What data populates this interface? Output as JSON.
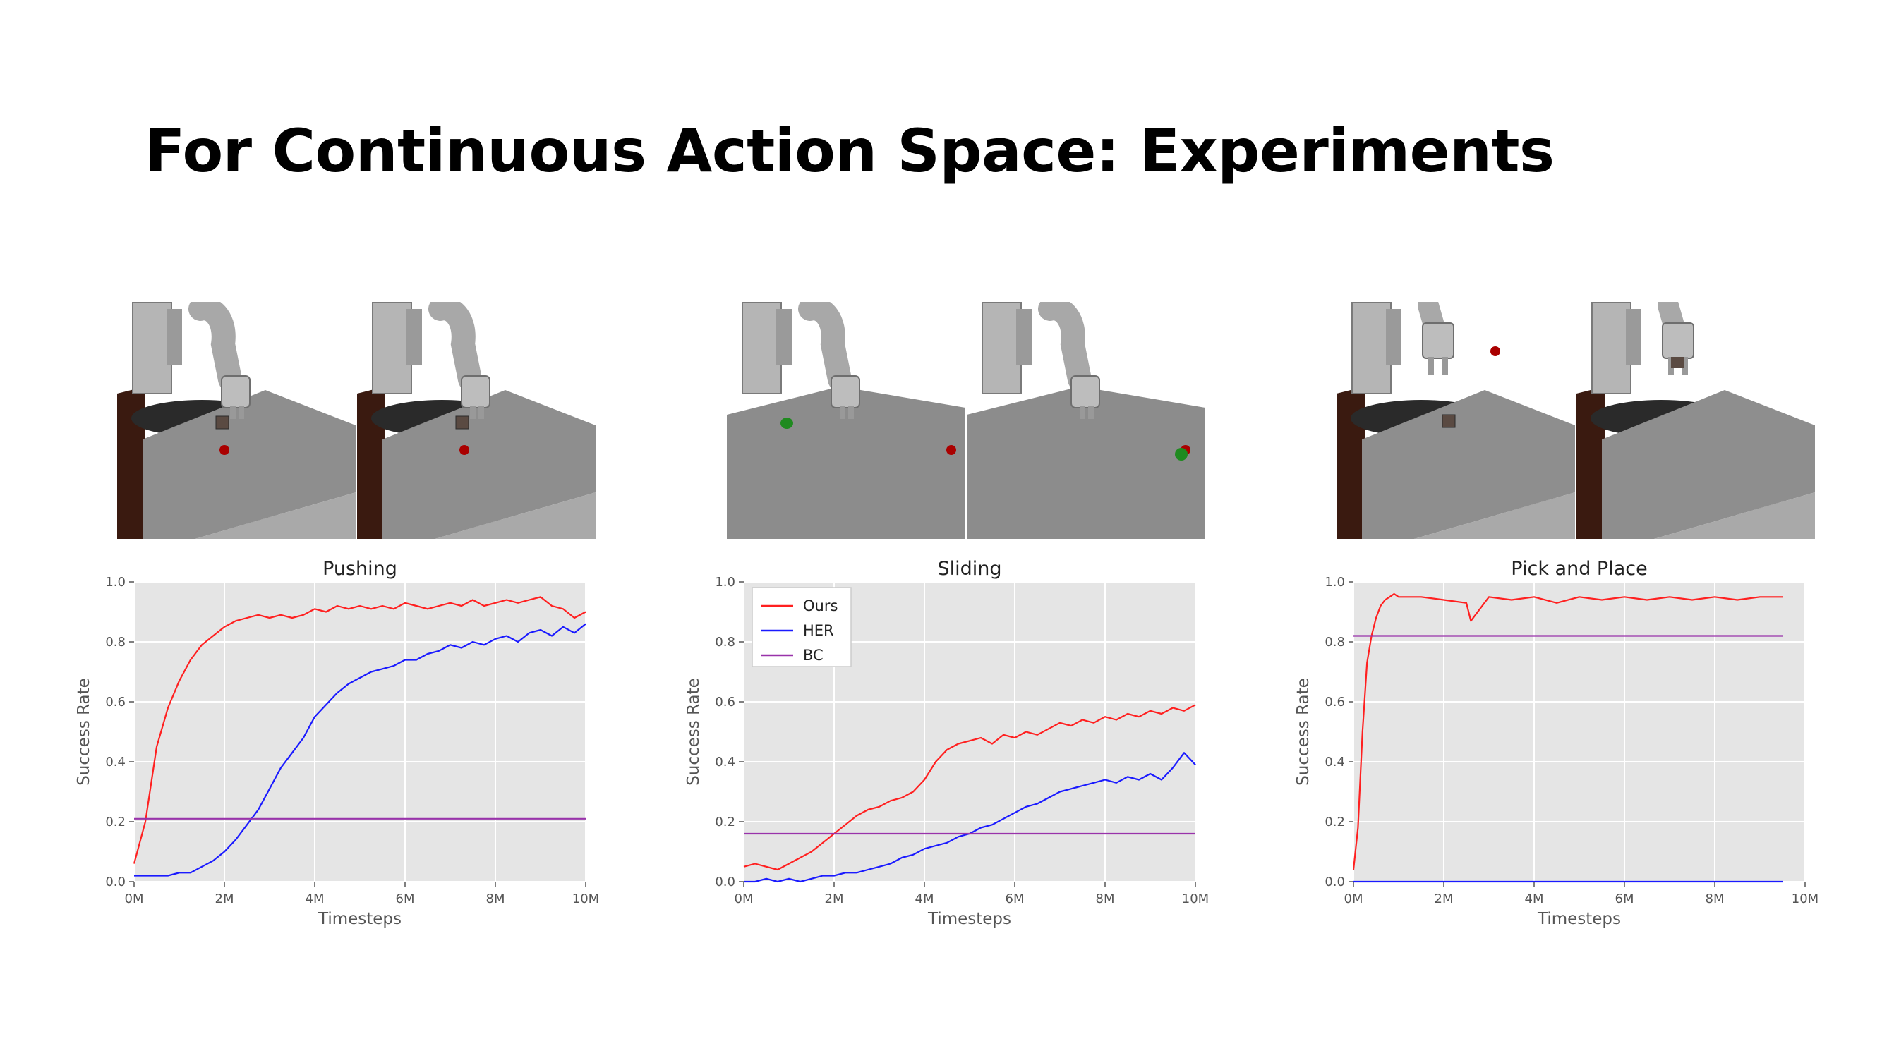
{
  "title": "For Continuous Action Space: Experiments",
  "colors": {
    "ours": "#ff2020",
    "her": "#1a1aff",
    "bc": "#9933aa",
    "plot_bg": "#e5e5e5",
    "grid": "#ffffff",
    "table_top": "#8e8e8e",
    "table_front": "#a9a9a9",
    "wood": "#3a1a10",
    "robot": "#a8a8a8",
    "object_red": "#aa0000",
    "object_green": "#1f8a1f",
    "box": "#5a4a42"
  },
  "scenes": [
    {
      "task": "pushing",
      "frames": [
        {
          "type": "push",
          "arm": "down",
          "block": true,
          "target": "red",
          "hand_block": false
        },
        {
          "type": "push",
          "arm": "down",
          "block": true,
          "target": "red",
          "hand_block": false
        }
      ]
    },
    {
      "task": "sliding",
      "frames": [
        {
          "type": "slide",
          "arm": "down",
          "puck_near": true,
          "target": "red"
        },
        {
          "type": "slide",
          "arm": "down",
          "puck_near": false,
          "target": "red"
        }
      ]
    },
    {
      "task": "pick-and-place",
      "frames": [
        {
          "type": "pick",
          "arm": "up",
          "block": true,
          "target": "red",
          "hand_block": false
        },
        {
          "type": "pick",
          "arm": "up",
          "block": false,
          "target": "none",
          "hand_block": true
        }
      ]
    }
  ],
  "chart_data": [
    {
      "type": "line",
      "title": "Pushing",
      "xlabel": "Timesteps",
      "ylabel": "Success Rate",
      "xlim": [
        0,
        10
      ],
      "ylim": [
        0,
        1
      ],
      "xticks": [
        "0M",
        "2M",
        "4M",
        "6M",
        "8M",
        "10M"
      ],
      "yticks": [
        "0.0",
        "0.2",
        "0.4",
        "0.6",
        "0.8",
        "1.0"
      ],
      "grid": true,
      "legend": "none",
      "x": [
        0,
        0.25,
        0.5,
        0.75,
        1,
        1.25,
        1.5,
        1.75,
        2,
        2.25,
        2.5,
        2.75,
        3,
        3.25,
        3.5,
        3.75,
        4,
        4.25,
        4.5,
        4.75,
        5,
        5.25,
        5.5,
        5.75,
        6,
        6.25,
        6.5,
        6.75,
        7,
        7.25,
        7.5,
        7.75,
        8,
        8.25,
        8.5,
        8.75,
        9,
        9.25,
        9.5,
        9.75,
        10
      ],
      "series": [
        {
          "name": "Ours",
          "values": [
            0.06,
            0.2,
            0.45,
            0.58,
            0.67,
            0.74,
            0.79,
            0.82,
            0.85,
            0.87,
            0.88,
            0.89,
            0.88,
            0.89,
            0.88,
            0.89,
            0.91,
            0.9,
            0.92,
            0.91,
            0.92,
            0.91,
            0.92,
            0.91,
            0.93,
            0.92,
            0.91,
            0.92,
            0.93,
            0.92,
            0.94,
            0.92,
            0.93,
            0.94,
            0.93,
            0.94,
            0.95,
            0.92,
            0.91,
            0.88,
            0.9
          ]
        },
        {
          "name": "HER",
          "values": [
            0.02,
            0.02,
            0.02,
            0.02,
            0.03,
            0.03,
            0.05,
            0.07,
            0.1,
            0.14,
            0.19,
            0.24,
            0.31,
            0.38,
            0.43,
            0.48,
            0.55,
            0.59,
            0.63,
            0.66,
            0.68,
            0.7,
            0.71,
            0.72,
            0.74,
            0.74,
            0.76,
            0.77,
            0.79,
            0.78,
            0.8,
            0.79,
            0.81,
            0.82,
            0.8,
            0.83,
            0.84,
            0.82,
            0.85,
            0.83,
            0.86
          ]
        },
        {
          "name": "BC",
          "values": [
            0.21,
            0.21,
            0.21,
            0.21,
            0.21,
            0.21,
            0.21,
            0.21,
            0.21,
            0.21,
            0.21,
            0.21,
            0.21,
            0.21,
            0.21,
            0.21,
            0.21,
            0.21,
            0.21,
            0.21,
            0.21,
            0.21,
            0.21,
            0.21,
            0.21,
            0.21,
            0.21,
            0.21,
            0.21,
            0.21,
            0.21,
            0.21,
            0.21,
            0.21,
            0.21,
            0.21,
            0.21,
            0.21,
            0.21,
            0.21,
            0.21
          ]
        }
      ]
    },
    {
      "type": "line",
      "title": "Sliding",
      "xlabel": "Timesteps",
      "ylabel": "Success Rate",
      "xlim": [
        0,
        10
      ],
      "ylim": [
        0,
        1
      ],
      "xticks": [
        "0M",
        "2M",
        "4M",
        "6M",
        "8M",
        "10M"
      ],
      "yticks": [
        "0.0",
        "0.2",
        "0.4",
        "0.6",
        "0.8",
        "1.0"
      ],
      "grid": true,
      "legend": "top-left",
      "x": [
        0,
        0.25,
        0.5,
        0.75,
        1,
        1.25,
        1.5,
        1.75,
        2,
        2.25,
        2.5,
        2.75,
        3,
        3.25,
        3.5,
        3.75,
        4,
        4.25,
        4.5,
        4.75,
        5,
        5.25,
        5.5,
        5.75,
        6,
        6.25,
        6.5,
        6.75,
        7,
        7.25,
        7.5,
        7.75,
        8,
        8.25,
        8.5,
        8.75,
        9,
        9.25,
        9.5,
        9.75,
        10
      ],
      "series": [
        {
          "name": "Ours",
          "values": [
            0.05,
            0.06,
            0.05,
            0.04,
            0.06,
            0.08,
            0.1,
            0.13,
            0.16,
            0.19,
            0.22,
            0.24,
            0.25,
            0.27,
            0.28,
            0.3,
            0.34,
            0.4,
            0.44,
            0.46,
            0.47,
            0.48,
            0.46,
            0.49,
            0.48,
            0.5,
            0.49,
            0.51,
            0.53,
            0.52,
            0.54,
            0.53,
            0.55,
            0.54,
            0.56,
            0.55,
            0.57,
            0.56,
            0.58,
            0.57,
            0.59
          ]
        },
        {
          "name": "HER",
          "values": [
            0.0,
            0.0,
            0.01,
            0.0,
            0.01,
            0.0,
            0.01,
            0.02,
            0.02,
            0.03,
            0.03,
            0.04,
            0.05,
            0.06,
            0.08,
            0.09,
            0.11,
            0.12,
            0.13,
            0.15,
            0.16,
            0.18,
            0.19,
            0.21,
            0.23,
            0.25,
            0.26,
            0.28,
            0.3,
            0.31,
            0.32,
            0.33,
            0.34,
            0.33,
            0.35,
            0.34,
            0.36,
            0.34,
            0.38,
            0.43,
            0.39
          ]
        },
        {
          "name": "BC",
          "values": [
            0.16,
            0.16,
            0.16,
            0.16,
            0.16,
            0.16,
            0.16,
            0.16,
            0.16,
            0.16,
            0.16,
            0.16,
            0.16,
            0.16,
            0.16,
            0.16,
            0.16,
            0.16,
            0.16,
            0.16,
            0.16,
            0.16,
            0.16,
            0.16,
            0.16,
            0.16,
            0.16,
            0.16,
            0.16,
            0.16,
            0.16,
            0.16,
            0.16,
            0.16,
            0.16,
            0.16,
            0.16,
            0.16,
            0.16,
            0.16,
            0.16
          ]
        }
      ]
    },
    {
      "type": "line",
      "title": "Pick and Place",
      "xlabel": "Timesteps",
      "ylabel": "Success Rate",
      "xlim": [
        0,
        10
      ],
      "ylim": [
        0,
        1
      ],
      "xticks": [
        "0M",
        "2M",
        "4M",
        "6M",
        "8M",
        "10M"
      ],
      "yticks": [
        "0.0",
        "0.2",
        "0.4",
        "0.6",
        "0.8",
        "1.0"
      ],
      "grid": true,
      "legend": "none",
      "x": [
        0,
        0.1,
        0.2,
        0.3,
        0.4,
        0.5,
        0.6,
        0.7,
        0.8,
        0.9,
        1,
        1.5,
        2,
        2.5,
        2.6,
        3,
        3.5,
        4,
        4.5,
        5,
        5.5,
        6,
        6.5,
        7,
        7.5,
        8,
        8.5,
        9,
        9.5
      ],
      "series": [
        {
          "name": "Ours",
          "values": [
            0.04,
            0.18,
            0.5,
            0.73,
            0.82,
            0.88,
            0.92,
            0.94,
            0.95,
            0.96,
            0.95,
            0.95,
            0.94,
            0.93,
            0.87,
            0.95,
            0.94,
            0.95,
            0.93,
            0.95,
            0.94,
            0.95,
            0.94,
            0.95,
            0.94,
            0.95,
            0.94,
            0.95,
            0.95
          ]
        },
        {
          "name": "HER",
          "values": [
            0.0,
            0.0,
            0.0,
            0.0,
            0.0,
            0.0,
            0.0,
            0.0,
            0.0,
            0.0,
            0.0,
            0.0,
            0.0,
            0.0,
            0.0,
            0.0,
            0.0,
            0.0,
            0.0,
            0.0,
            0.0,
            0.0,
            0.0,
            0.0,
            0.0,
            0.0,
            0.0,
            0.0,
            0.0
          ]
        },
        {
          "name": "BC",
          "values": [
            0.82,
            0.82,
            0.82,
            0.82,
            0.82,
            0.82,
            0.82,
            0.82,
            0.82,
            0.82,
            0.82,
            0.82,
            0.82,
            0.82,
            0.82,
            0.82,
            0.82,
            0.82,
            0.82,
            0.82,
            0.82,
            0.82,
            0.82,
            0.82,
            0.82,
            0.82,
            0.82,
            0.82,
            0.82
          ]
        }
      ]
    }
  ]
}
